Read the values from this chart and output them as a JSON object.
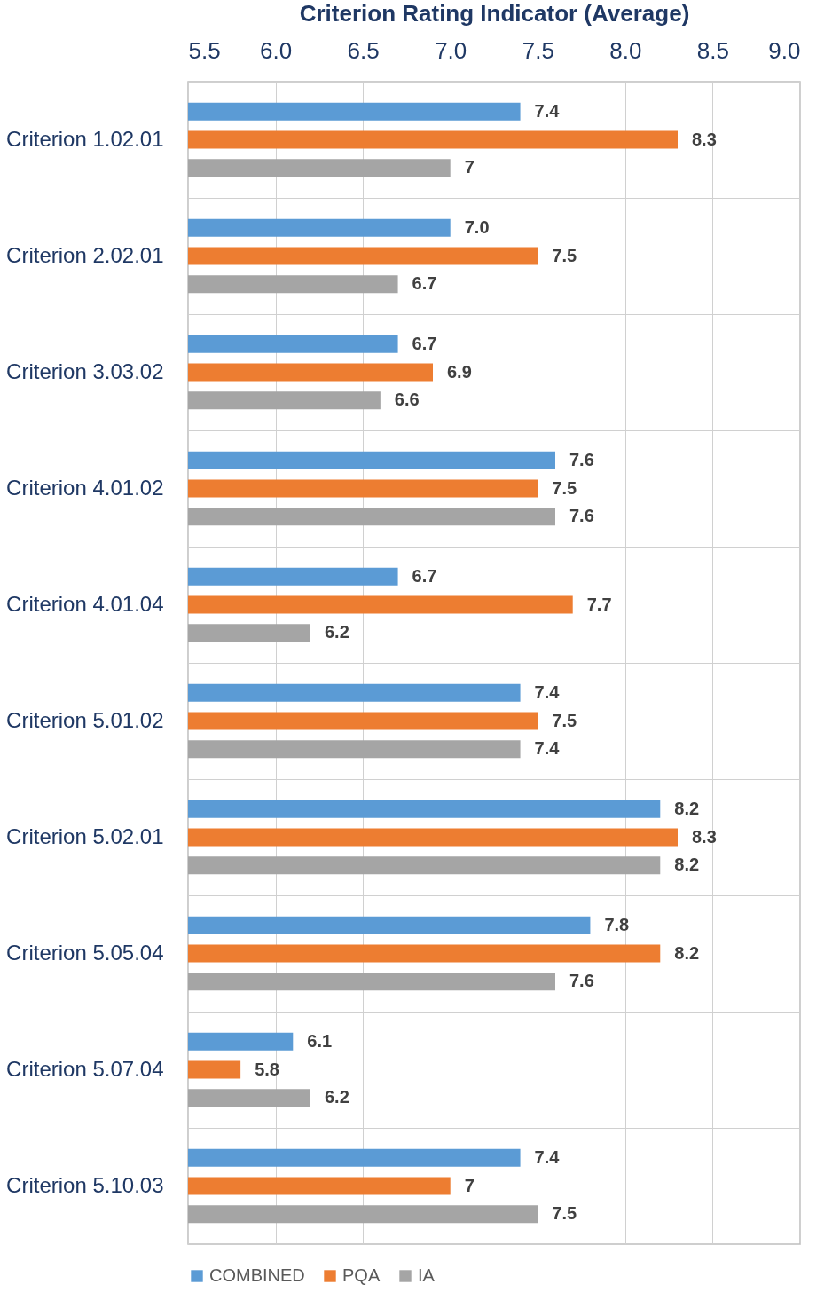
{
  "chart_data": {
    "type": "bar",
    "orientation": "horizontal",
    "xlabel": "Criterion Rating Indicator (Average)",
    "categories": [
      "Criterion 1.02.01",
      "Criterion 2.02.01",
      "Criterion 3.03.02",
      "Criterion 4.01.02",
      "Criterion 4.01.04",
      "Criterion 5.01.02",
      "Criterion 5.02.01",
      "Criterion 5.05.04",
      "Criterion 5.07.04",
      "Criterion 5.10.03"
    ],
    "series": [
      {
        "name": "COMBINED",
        "color": "#5b9bd5",
        "values": [
          7.4,
          7.0,
          6.7,
          7.6,
          6.7,
          7.4,
          8.2,
          7.8,
          6.1,
          7.4
        ],
        "value_labels": [
          "7.4",
          "7.0",
          "6.7",
          "7.6",
          "6.7",
          "7.4",
          "8.2",
          "7.8",
          "6.1",
          "7.4"
        ]
      },
      {
        "name": "PQA",
        "color": "#ed7d31",
        "values": [
          8.3,
          7.5,
          6.9,
          7.5,
          7.7,
          7.5,
          8.3,
          8.2,
          5.8,
          7
        ],
        "value_labels": [
          "8.3",
          "7.5",
          "6.9",
          "7.5",
          "7.7",
          "7.5",
          "8.3",
          "8.2",
          "5.8",
          "7"
        ]
      },
      {
        "name": "IA",
        "color": "#a5a5a5",
        "values": [
          7,
          6.7,
          6.6,
          7.6,
          6.2,
          7.4,
          8.2,
          7.6,
          6.2,
          7.5
        ],
        "value_labels": [
          "7",
          "6.7",
          "6.6",
          "7.6",
          "6.2",
          "7.4",
          "8.2",
          "7.6",
          "6.2",
          "7.5"
        ]
      }
    ],
    "xlim": [
      5.5,
      9.0
    ],
    "xticks": [
      5.5,
      {
        "value": 6,
        "label": "6.0"
      },
      6.5,
      {
        "value": 7,
        "label": "7.0"
      },
      7.5,
      {
        "value": 8,
        "label": "8.0"
      },
      8.5,
      {
        "value": 9,
        "label": "9.0"
      }
    ],
    "grid": true,
    "legend": "bottom"
  }
}
